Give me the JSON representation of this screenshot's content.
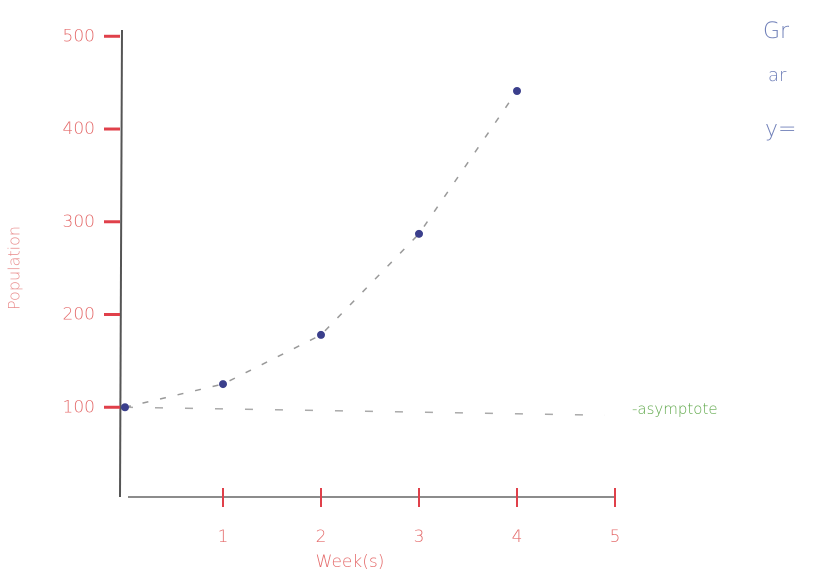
{
  "chart_data": {
    "type": "scatter",
    "x_label": "Week(s)",
    "y_label": "Population",
    "x": [
      0,
      1,
      2,
      3,
      4
    ],
    "values": [
      100,
      125,
      178,
      287,
      441
    ],
    "color": "#3b3f8c",
    "xlim": [
      0,
      5
    ],
    "ylim": [
      0,
      510
    ],
    "xticks": [
      1,
      2,
      3,
      4,
      5
    ],
    "yticks": [
      100,
      200,
      300,
      400,
      500
    ],
    "asymptote": {
      "value": 100,
      "label": "-asymptote"
    },
    "notes": [
      "Gr",
      "ar",
      "y="
    ]
  }
}
